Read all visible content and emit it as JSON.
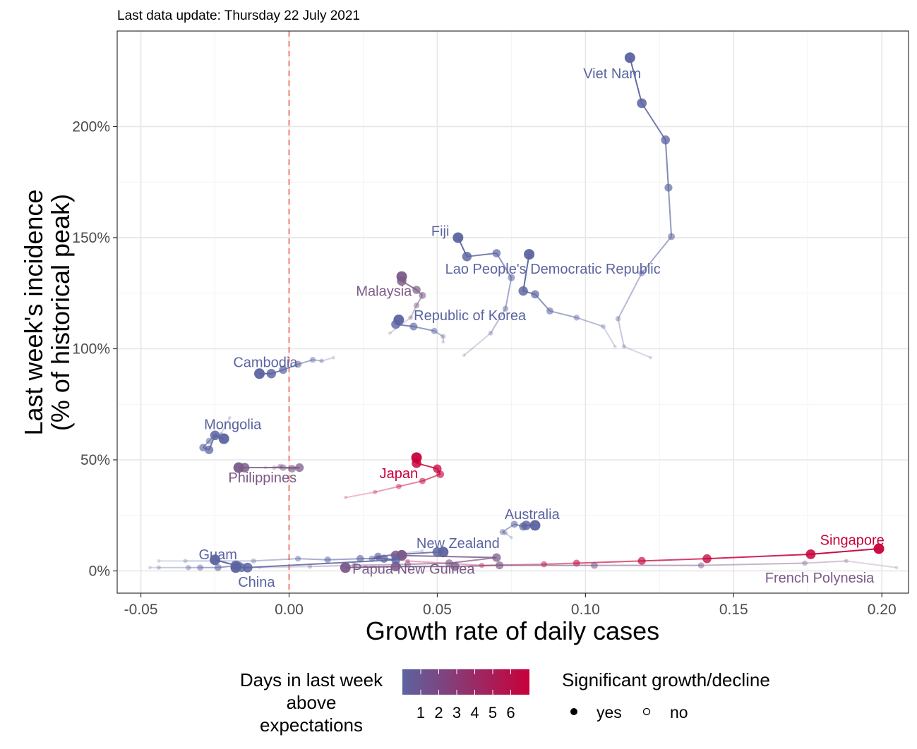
{
  "chart_data": {
    "type": "scatter",
    "subtitle": "Last data update: Thursday 22 July 2021",
    "xlabel": "Growth rate of daily cases",
    "ylabel_line1": "Last week's incidence",
    "ylabel_line2": "(% of historical peak)",
    "xlim": [
      -0.058,
      0.209
    ],
    "ylim": [
      -10,
      243
    ],
    "x_ticks": [
      -0.05,
      0.0,
      0.05,
      0.1,
      0.15,
      0.2
    ],
    "x_tick_labels": [
      "-0.05",
      "0.00",
      "0.05",
      "0.10",
      "0.15",
      "0.20"
    ],
    "y_ticks": [
      0,
      50,
      100,
      150,
      200
    ],
    "y_tick_labels": [
      "0%",
      "50%",
      "100%",
      "150%",
      "200%"
    ],
    "grid": true,
    "reference_line_x": 0,
    "colors": {
      "low": "#5b64a0",
      "high": "#c8003a",
      "reference": "#f08070",
      "grid_major": "#e6e6e6",
      "grid_minor": "#f3f3f3"
    },
    "series": [
      {
        "name": "Viet Nam",
        "color": "#5b64a0",
        "points": [
          [
            0.122,
            96
          ],
          [
            0.113,
            101
          ],
          [
            0.111,
            113.5
          ],
          [
            0.119,
            134
          ],
          [
            0.129,
            150.5
          ],
          [
            0.128,
            172.5
          ],
          [
            0.127,
            194
          ],
          [
            0.119,
            210.5
          ],
          [
            0.115,
            231
          ]
        ],
        "label_xy": [
          0.109,
          224
        ]
      },
      {
        "name": "Lao People's Democratic Republic",
        "color": "#5b64a0",
        "points": [
          [
            0.11,
            101
          ],
          [
            0.106,
            110
          ],
          [
            0.097,
            114
          ],
          [
            0.088,
            117
          ],
          [
            0.083,
            124.5
          ],
          [
            0.079,
            126
          ],
          [
            0.081,
            142.5
          ]
        ],
        "label_xy": [
          0.089,
          136
        ]
      },
      {
        "name": "Fiji",
        "color": "#5b64a0",
        "points": [
          [
            0.059,
            97
          ],
          [
            0.068,
            107
          ],
          [
            0.073,
            118
          ],
          [
            0.075,
            132
          ],
          [
            0.07,
            143
          ],
          [
            0.06,
            141.5
          ],
          [
            0.057,
            150
          ]
        ],
        "label_xy": [
          0.051,
          153
        ]
      },
      {
        "name": "Malaysia",
        "color": "#7b5a88",
        "points": [
          [
            0.034,
            107
          ],
          [
            0.041,
            114
          ],
          [
            0.043,
            119.5
          ],
          [
            0.045,
            124
          ],
          [
            0.043,
            126.5
          ],
          [
            0.038,
            130.5
          ],
          [
            0.038,
            132.5
          ]
        ],
        "label_xy": [
          0.032,
          126
        ]
      },
      {
        "name": "Republic of Korea",
        "color": "#5b64a0",
        "points": [
          [
            0.052,
            103
          ],
          [
            0.052,
            105.5
          ],
          [
            0.049,
            108
          ],
          [
            0.042,
            110
          ],
          [
            0.036,
            111
          ],
          [
            0.037,
            113
          ]
        ],
        "label_xy": [
          0.061,
          115
        ]
      },
      {
        "name": "Cambodia",
        "color": "#5b64a0",
        "points": [
          [
            0.015,
            96
          ],
          [
            0.011,
            94.5
          ],
          [
            0.008,
            95
          ],
          [
            0.003,
            93
          ],
          [
            -0.002,
            90.5
          ],
          [
            -0.006,
            88.8
          ],
          [
            -0.01,
            88.8
          ]
        ],
        "label_xy": [
          -0.008,
          94
        ]
      },
      {
        "name": "Mongolia",
        "color": "#5b64a0",
        "points": [
          [
            -0.02,
            69
          ],
          [
            -0.023,
            61.5
          ],
          [
            -0.025,
            61
          ],
          [
            -0.027,
            58.5
          ],
          [
            -0.029,
            55.5
          ],
          [
            -0.027,
            54.5
          ],
          [
            -0.025,
            61
          ],
          [
            -0.022,
            59.5
          ]
        ],
        "label_xy": [
          -0.019,
          66
        ]
      },
      {
        "name": "Philippines",
        "color": "#7b5a88",
        "points": [
          [
            -0.008,
            46.5
          ],
          [
            -0.005,
            46.5
          ],
          [
            -0.003,
            47
          ],
          [
            -0.002,
            46.5
          ],
          [
            0.001,
            46
          ],
          [
            0.0035,
            46.5
          ],
          [
            -0.015,
            46.5
          ],
          [
            -0.017,
            46.5
          ]
        ],
        "label_xy": [
          -0.009,
          42
        ]
      },
      {
        "name": "Japan",
        "color": "#c8003a",
        "points": [
          [
            0.019,
            33
          ],
          [
            0.029,
            35.5
          ],
          [
            0.037,
            38
          ],
          [
            0.045,
            40.5
          ],
          [
            0.051,
            43.5
          ],
          [
            0.05,
            46
          ],
          [
            0.043,
            48.5
          ],
          [
            0.043,
            51
          ]
        ],
        "label_xy": [
          0.037,
          44
        ]
      },
      {
        "name": "Australia",
        "color": "#5b64a0",
        "points": [
          [
            0.075,
            15
          ],
          [
            0.073,
            17
          ],
          [
            0.072,
            17.5
          ],
          [
            0.076,
            21
          ],
          [
            0.079,
            20
          ],
          [
            0.08,
            20.5
          ],
          [
            0.083,
            20.5
          ]
        ],
        "label_xy": [
          0.082,
          25.5
        ]
      },
      {
        "name": "New Zealand",
        "color": "#5b64a0",
        "points": [
          [
            0.045,
            9
          ],
          [
            0.035,
            7.5
          ],
          [
            0.03,
            6
          ],
          [
            0.028,
            5.5
          ],
          [
            0.03,
            6.5
          ],
          [
            0.038,
            7.5
          ],
          [
            0.05,
            8.5
          ],
          [
            0.052,
            8.5
          ]
        ],
        "label_xy": [
          0.057,
          12.5
        ]
      },
      {
        "name": "Singapore",
        "color": "#c8003a",
        "points": [
          [
            0.03,
            6
          ],
          [
            0.04,
            4.5
          ],
          [
            0.065,
            2.5
          ],
          [
            0.086,
            3
          ],
          [
            0.097,
            3.5
          ],
          [
            0.119,
            4.5
          ],
          [
            0.141,
            5.5
          ],
          [
            0.176,
            7.5
          ],
          [
            0.199,
            10
          ]
        ],
        "label_xy": [
          0.19,
          14
        ]
      },
      {
        "name": "French Polynesia",
        "color": "#7b5a88",
        "points": [
          [
            0.205,
            1.5
          ],
          [
            0.188,
            4.5
          ],
          [
            0.174,
            3.5
          ],
          [
            0.139,
            2.5
          ],
          [
            0.103,
            2.5
          ],
          [
            0.071,
            2.5
          ],
          [
            0.056,
            2
          ],
          [
            0.036,
            2
          ],
          [
            0.019,
            1.5
          ]
        ],
        "label_xy": [
          0.179,
          -3
        ]
      },
      {
        "name": "Papua New Guinea",
        "color": "#7b5a88",
        "points": [
          [
            -0.01,
            1.5
          ],
          [
            0.007,
            2
          ],
          [
            0.022,
            2.5
          ],
          [
            0.04,
            3
          ],
          [
            0.054,
            3.5
          ],
          [
            0.07,
            6
          ],
          [
            0.036,
            7
          ],
          [
            0.038,
            7
          ]
        ],
        "label_xy": [
          0.042,
          1
        ]
      },
      {
        "name": "Guam",
        "color": "#5b64a0",
        "points": [
          [
            -0.047,
            1.5
          ],
          [
            -0.044,
            1.5
          ],
          [
            -0.034,
            1.5
          ],
          [
            -0.03,
            1.5
          ],
          [
            -0.024,
            1.5
          ],
          [
            -0.017,
            2.5
          ],
          [
            -0.016,
            1.5
          ],
          [
            -0.018,
            2.5
          ],
          [
            -0.025,
            5
          ]
        ],
        "label_xy": [
          -0.024,
          7.5
        ]
      },
      {
        "name": "China",
        "color": "#5b64a0",
        "points": [
          [
            -0.044,
            4.5
          ],
          [
            -0.035,
            4.5
          ],
          [
            -0.012,
            4.5
          ],
          [
            0.003,
            5.5
          ],
          [
            0.013,
            5
          ],
          [
            0.024,
            5.5
          ],
          [
            0.032,
            5.5
          ],
          [
            0.036,
            5
          ],
          [
            -0.014,
            1.5
          ],
          [
            -0.018,
            1.5
          ]
        ],
        "label_xy": [
          -0.011,
          -5
        ]
      }
    ],
    "legend": {
      "color_title_line1": "Days in last week",
      "color_title_line2": "above",
      "color_title_line3": "expectations",
      "color_labels": [
        "1",
        "2",
        "3",
        "4",
        "5",
        "6"
      ],
      "color_stops": [
        "#5b64a0",
        "#74598a",
        "#8c4e72",
        "#a2435d",
        "#b43049",
        "#c5103c",
        "#c8003a"
      ],
      "shape_title": "Significant growth/decline",
      "shape_labels": [
        "yes",
        "no"
      ],
      "position": "bottom"
    }
  }
}
